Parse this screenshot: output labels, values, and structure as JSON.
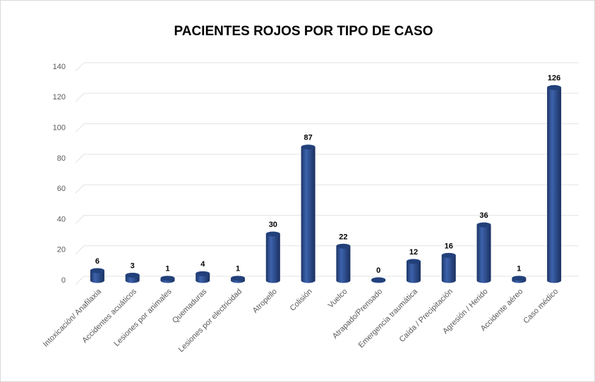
{
  "chart_data": {
    "type": "bar",
    "title": "PACIENTES ROJOS POR TIPO DE CASO",
    "categories": [
      "Intoxicación/ Anafilaxia",
      "Accidentes acuáticos",
      "Lesiones por animales",
      "Quemaduras",
      "Lesiones por electricidad",
      "Atropello",
      "Colisión",
      "Vuelco",
      "Atrapado/Prensado",
      "Emergencia traumática",
      "Caída / Precipitación",
      "Agresión / Herido",
      "Accidente aéreo",
      "Caso médico"
    ],
    "values": [
      6,
      3,
      1,
      4,
      1,
      30,
      87,
      22,
      0,
      12,
      16,
      36,
      1,
      126
    ],
    "color": "#2e4f8f",
    "ylim": [
      0,
      140
    ],
    "yticks": [
      0,
      20,
      40,
      60,
      80,
      100,
      120,
      140
    ],
    "grid": true
  }
}
